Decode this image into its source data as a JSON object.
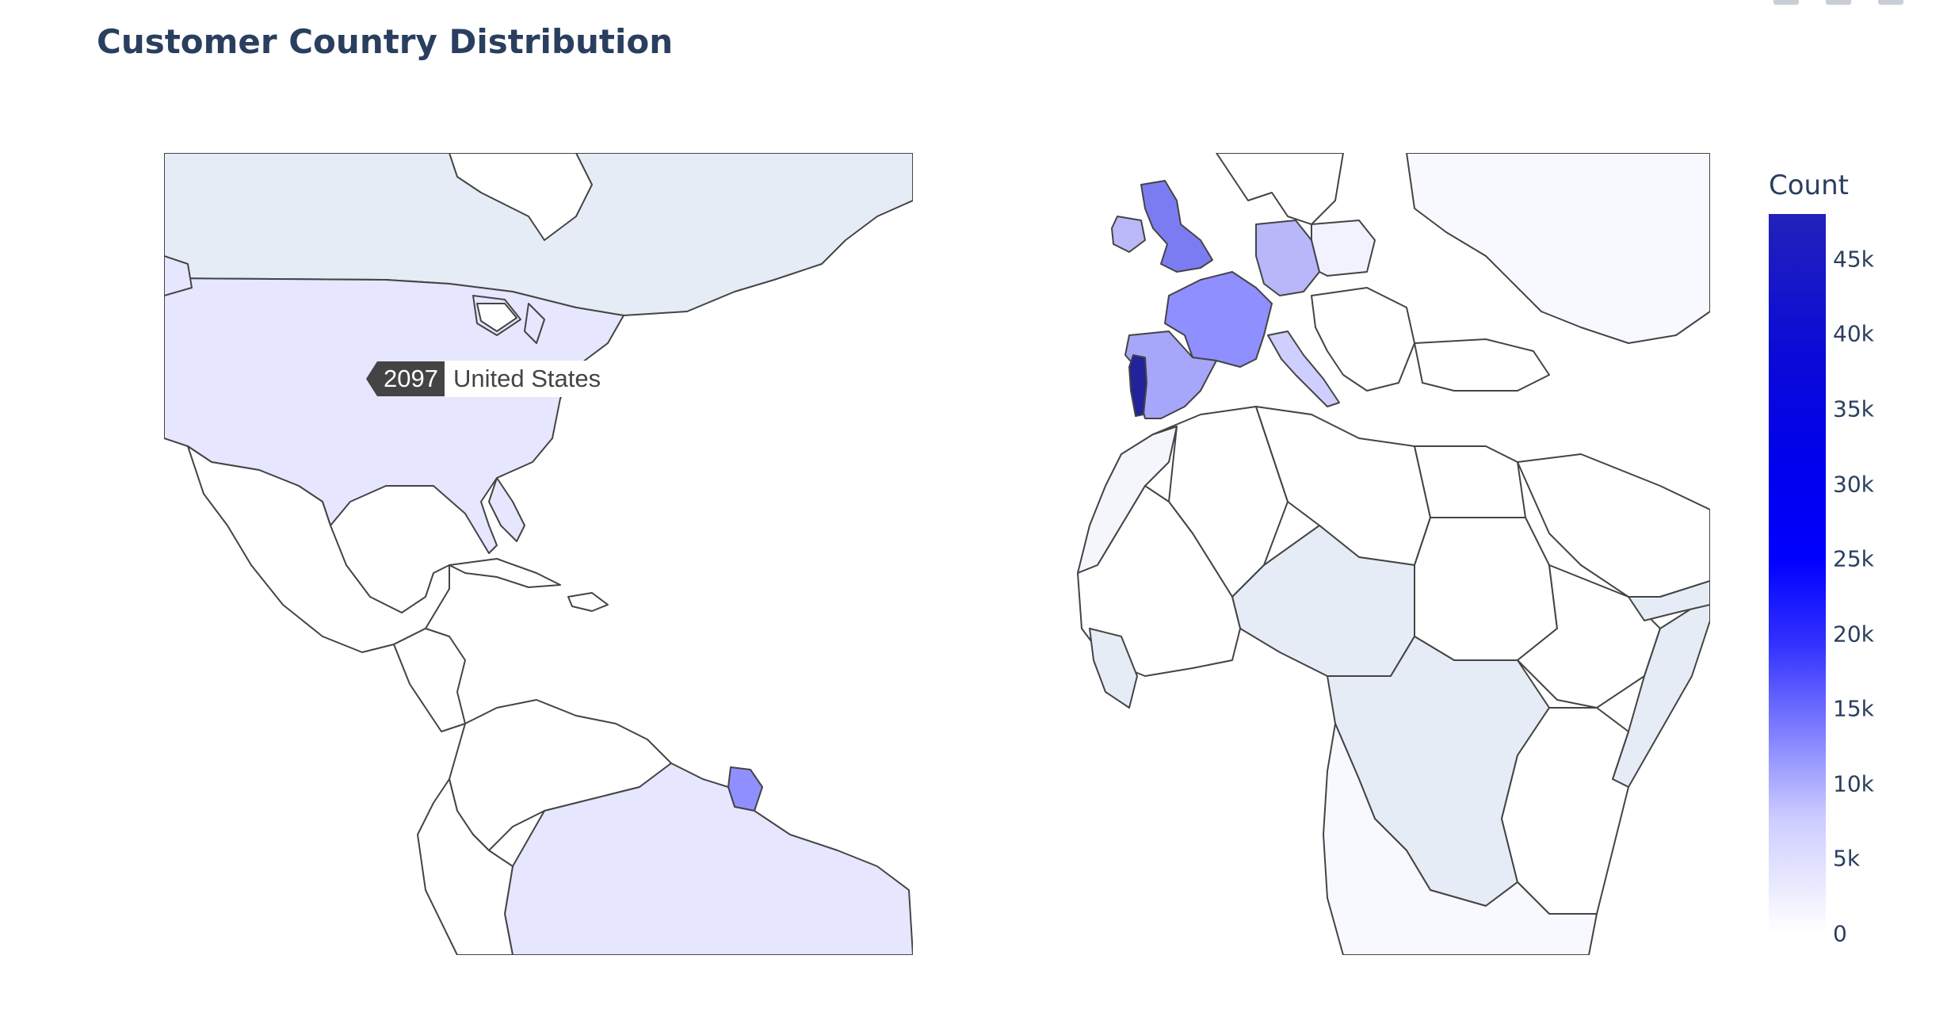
{
  "title": "Customer Country Distribution",
  "colorscale": {
    "title": "Count",
    "min": 0,
    "max": 48000,
    "ticks": [
      "0",
      "5k",
      "10k",
      "15k",
      "20k",
      "25k",
      "30k",
      "35k",
      "40k",
      "45k"
    ],
    "colors": [
      "#ffffff",
      "#ccccff",
      "#7f7fff",
      "#3333ff",
      "#0000ff",
      "#2222bb"
    ]
  },
  "hover": {
    "value": "2097",
    "country": "United States"
  },
  "chart_data": {
    "type": "choropleth",
    "value_label": "Count",
    "hovered": {
      "country": "United States",
      "value": 2097
    },
    "colorbar_range": [
      0,
      48000
    ]
  }
}
